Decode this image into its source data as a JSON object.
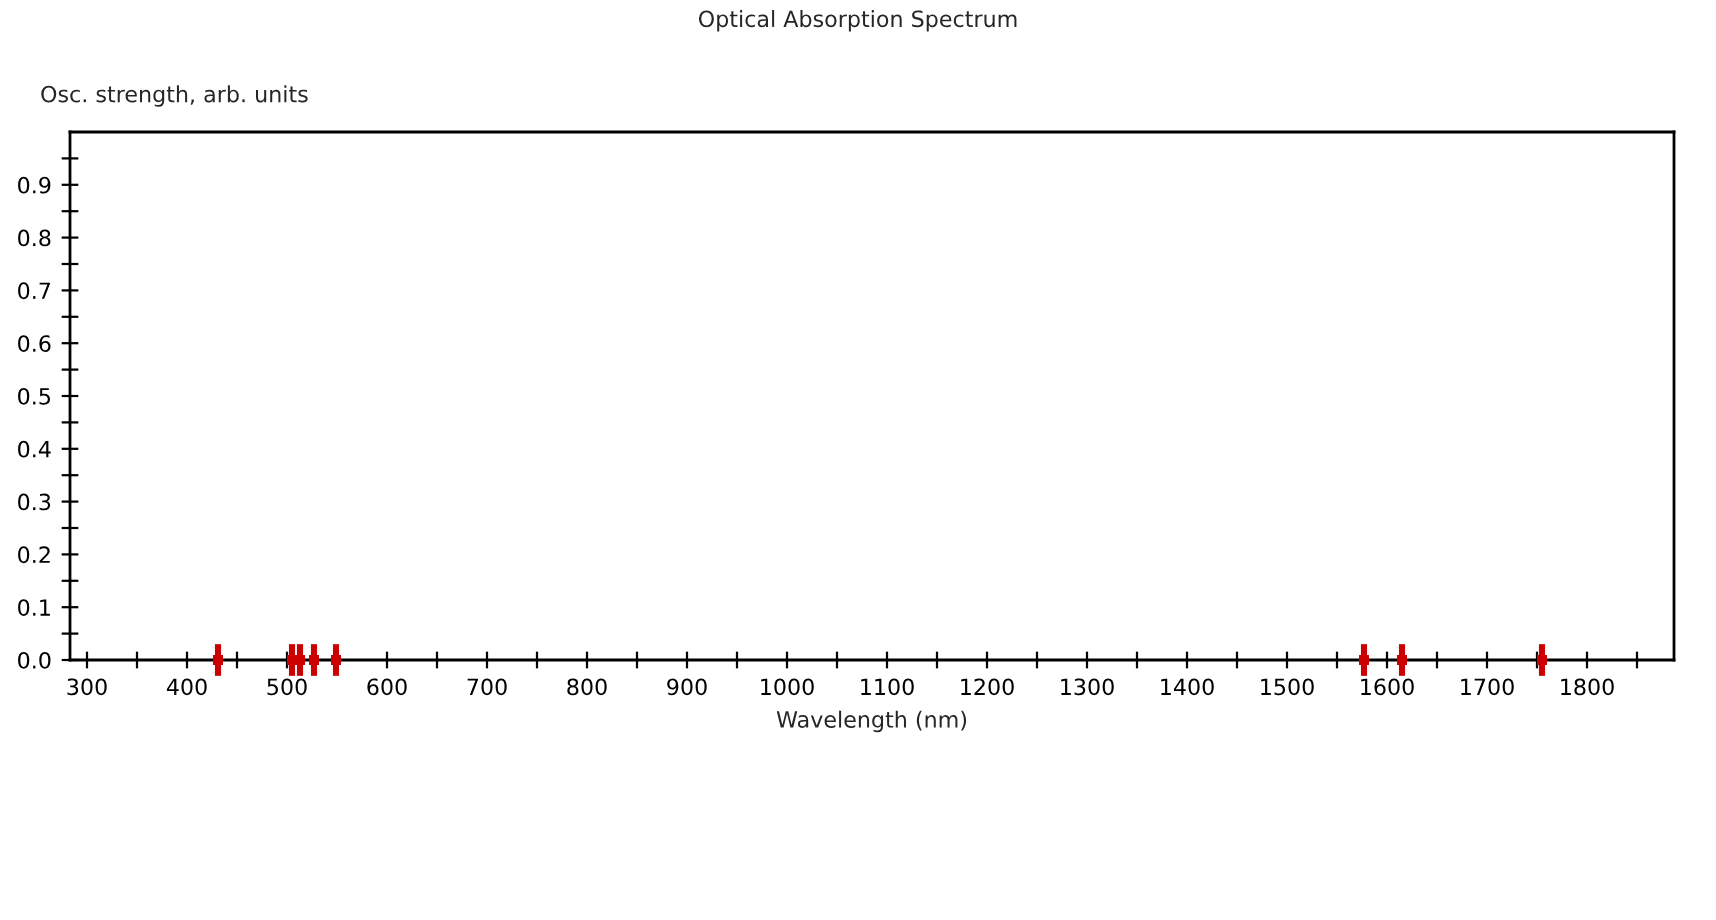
{
  "chart_data": {
    "type": "scatter",
    "title": "Optical Absorption Spectrum",
    "xlabel": "Wavelength (nm)",
    "ylabel": "Osc. strength, arb. units",
    "x": [
      431,
      505,
      513,
      527,
      549,
      1577,
      1615,
      1755
    ],
    "series": [
      {
        "color": "#cc0000",
        "values": [
          0,
          0,
          0,
          0,
          0,
          0,
          0,
          0
        ],
        "errors": [
          0.03,
          0.03,
          0.03,
          0.03,
          0.03,
          0.03,
          0.03,
          0.03
        ]
      }
    ],
    "marker": "square",
    "xlim": [
      283,
      1887
    ],
    "ylim": [
      0,
      1.0
    ],
    "xticks": [
      300,
      {
        "value": 350,
        "label": null
      },
      400,
      {
        "value": 450,
        "label": null
      },
      500,
      {
        "value": 550,
        "label": null
      },
      600,
      {
        "value": 650,
        "label": null
      },
      700,
      {
        "value": 750,
        "label": null
      },
      800,
      {
        "value": 850,
        "label": null
      },
      900,
      {
        "value": 950,
        "label": null
      },
      1000,
      {
        "value": 1050,
        "label": null
      },
      1100,
      {
        "value": 1150,
        "label": null
      },
      1200,
      {
        "value": 1250,
        "label": null
      },
      1300,
      {
        "value": 1350,
        "label": null
      },
      1400,
      {
        "value": 1450,
        "label": null
      },
      1500,
      {
        "value": 1550,
        "label": null
      },
      1600,
      {
        "value": 1650,
        "label": null
      },
      1700,
      {
        "value": 1750,
        "label": null
      },
      1800,
      {
        "value": 1850,
        "label": null
      }
    ],
    "yticks": [
      {
        "value": 0,
        "label": "0.0"
      },
      {
        "value": 0.05,
        "label": null
      },
      0.1,
      {
        "value": 0.15,
        "label": null
      },
      0.2,
      {
        "value": 0.25,
        "label": null
      },
      0.3,
      {
        "value": 0.35,
        "label": null
      },
      0.4,
      {
        "value": 0.45,
        "label": null
      },
      0.5,
      {
        "value": 0.55,
        "label": null
      },
      0.6,
      {
        "value": 0.65,
        "label": null
      },
      0.7,
      {
        "value": 0.75,
        "label": null
      },
      0.8,
      {
        "value": 0.85,
        "label": null
      },
      0.9,
      {
        "value": 0.95,
        "label": null
      }
    ],
    "grid": false,
    "legend": false
  }
}
